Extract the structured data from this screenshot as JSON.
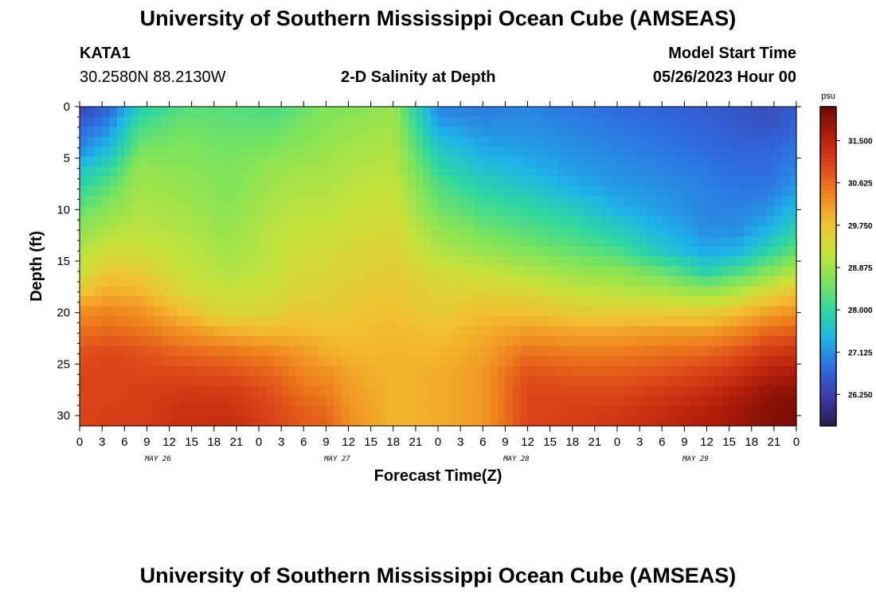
{
  "page": {
    "title": "University of Southern Mississippi Ocean Cube (AMSEAS)",
    "station_id": "KATA1",
    "station_coords": "30.2580N  88.2130W",
    "plot_title": "2-D Salinity at Depth",
    "model_start_label": "Model Start Time",
    "model_start_value": "05/26/2023 Hour 00",
    "footer_title": "University of Southern Mississippi Ocean Cube (AMSEAS)"
  },
  "chart_data": {
    "type": "heatmap",
    "title": "2-D Salinity at Depth",
    "xlabel": "Forecast Time(Z)",
    "ylabel": "Depth (ft)",
    "x_tick_labels": [
      "0",
      "3",
      "6",
      "9",
      "12",
      "15",
      "18",
      "21",
      "0",
      "3",
      "6",
      "9",
      "12",
      "15",
      "18",
      "21",
      "0",
      "3",
      "6",
      "9",
      "12",
      "15",
      "18",
      "21",
      "0",
      "3",
      "6",
      "9",
      "12",
      "15",
      "18",
      "21",
      "0"
    ],
    "x_range_hours": [
      0,
      96
    ],
    "date_labels": [
      {
        "label": "MAY 26",
        "hour": 9
      },
      {
        "label": "MAY 27",
        "hour": 33
      },
      {
        "label": "MAY 28",
        "hour": 57
      },
      {
        "label": "MAY 29",
        "hour": 81
      }
    ],
    "y_ticks": [
      0,
      5,
      10,
      15,
      20,
      25,
      30
    ],
    "ylim": [
      0,
      31
    ],
    "y_inverted": true,
    "colorbar": {
      "unit": "psu",
      "range": [
        25.6,
        32.2
      ],
      "ticks": [
        "31.500",
        "30.625",
        "29.750",
        "28.875",
        "28.000",
        "27.125",
        "26.250"
      ],
      "tick_values": [
        31.5,
        30.625,
        29.75,
        28.875,
        28.0,
        27.125,
        26.25
      ],
      "colors": [
        "#2a1a4a",
        "#3c3ca8",
        "#2f6be0",
        "#1eb4e8",
        "#2fd7a0",
        "#7ee45a",
        "#c8e23a",
        "#f2c030",
        "#f0841e",
        "#dc4418",
        "#b41e0a",
        "#6e0a04"
      ]
    },
    "profile_hours": [
      0,
      4,
      8,
      14,
      20,
      26,
      30,
      33,
      36,
      42,
      48,
      54,
      60,
      66,
      72,
      78,
      84,
      88,
      92,
      96
    ],
    "profile_depths_ft": [
      0,
      2,
      4,
      6,
      8,
      10,
      12,
      14,
      16,
      18,
      20,
      22,
      24,
      26,
      28,
      30,
      31
    ],
    "salinity_psu": [
      [
        26.3,
        26.7,
        27.0,
        27.6,
        28.0,
        28.4,
        28.7,
        29.0,
        29.2,
        29.7,
        30.3,
        30.6,
        30.9,
        31.0,
        31.0,
        31.0,
        31.0
      ],
      [
        26.7,
        27.1,
        27.5,
        28.0,
        28.4,
        28.7,
        29.0,
        29.3,
        29.7,
        30.0,
        30.4,
        30.7,
        31.0,
        31.0,
        31.0,
        31.1,
        31.1
      ],
      [
        27.8,
        28.2,
        28.5,
        28.8,
        28.9,
        29.0,
        29.1,
        29.3,
        29.6,
        29.9,
        30.3,
        30.6,
        30.9,
        31.0,
        31.1,
        31.1,
        31.1
      ],
      [
        28.3,
        28.5,
        28.6,
        28.7,
        28.8,
        28.9,
        29.0,
        29.1,
        29.2,
        29.4,
        29.8,
        30.3,
        30.7,
        31.0,
        31.2,
        31.3,
        31.3
      ],
      [
        28.3,
        28.4,
        28.5,
        28.6,
        28.6,
        28.7,
        28.8,
        28.9,
        29.0,
        29.2,
        29.4,
        30.0,
        30.6,
        30.9,
        31.2,
        31.3,
        31.4
      ],
      [
        28.2,
        28.4,
        28.6,
        28.8,
        28.9,
        29.0,
        29.1,
        29.1,
        29.2,
        29.3,
        29.5,
        29.9,
        30.4,
        30.7,
        30.9,
        31.0,
        31.0
      ],
      [
        28.4,
        28.6,
        28.7,
        28.9,
        29.0,
        29.1,
        29.2,
        29.3,
        29.4,
        29.5,
        29.7,
        29.9,
        30.2,
        30.4,
        30.6,
        30.8,
        30.8
      ],
      [
        28.6,
        28.7,
        28.8,
        28.9,
        29.0,
        29.1,
        29.2,
        29.3,
        29.4,
        29.5,
        29.6,
        29.8,
        30.0,
        30.3,
        30.5,
        30.7,
        30.7
      ],
      [
        28.6,
        28.8,
        28.9,
        29.0,
        29.1,
        29.2,
        29.3,
        29.4,
        29.5,
        29.6,
        29.7,
        29.8,
        29.9,
        30.1,
        30.2,
        30.3,
        30.3
      ],
      [
        28.8,
        28.9,
        29.0,
        29.1,
        29.2,
        29.3,
        29.4,
        29.5,
        29.6,
        29.7,
        29.8,
        29.9,
        29.9,
        29.9,
        29.9,
        29.9,
        29.9
      ],
      [
        27.0,
        27.3,
        27.7,
        28.0,
        28.3,
        28.5,
        28.8,
        29.0,
        29.3,
        29.5,
        29.6,
        29.8,
        29.9,
        30.0,
        30.0,
        30.0,
        30.0
      ],
      [
        26.9,
        27.1,
        27.3,
        27.6,
        27.9,
        28.2,
        28.5,
        28.8,
        29.2,
        29.5,
        29.8,
        30.0,
        30.1,
        30.2,
        30.2,
        30.2,
        30.2
      ],
      [
        27.0,
        27.1,
        27.2,
        27.4,
        27.7,
        28.0,
        28.3,
        28.6,
        29.0,
        29.4,
        29.8,
        30.2,
        30.6,
        30.9,
        31.0,
        31.0,
        31.0
      ],
      [
        26.9,
        27.0,
        27.1,
        27.2,
        27.4,
        27.8,
        28.1,
        28.4,
        28.8,
        29.2,
        29.6,
        30.1,
        30.5,
        30.8,
        31.0,
        31.1,
        31.1
      ],
      [
        26.8,
        26.9,
        27.0,
        27.1,
        27.2,
        27.4,
        27.8,
        28.2,
        28.7,
        29.1,
        29.6,
        30.1,
        30.5,
        30.8,
        31.0,
        31.2,
        31.2
      ],
      [
        26.7,
        26.8,
        26.9,
        27.0,
        27.1,
        27.2,
        27.4,
        27.7,
        28.4,
        29.0,
        29.6,
        30.2,
        30.6,
        30.9,
        31.2,
        31.4,
        31.4
      ],
      [
        26.6,
        26.7,
        26.8,
        26.9,
        27.0,
        27.0,
        27.1,
        27.3,
        27.9,
        28.8,
        29.6,
        30.2,
        30.7,
        31.1,
        31.4,
        31.6,
        31.6
      ],
      [
        26.5,
        26.6,
        26.7,
        26.8,
        26.9,
        27.0,
        27.1,
        27.4,
        28.2,
        29.0,
        29.8,
        30.4,
        30.9,
        31.3,
        31.6,
        31.8,
        31.8
      ],
      [
        26.4,
        26.5,
        26.7,
        26.8,
        26.9,
        27.1,
        27.4,
        27.9,
        28.6,
        29.4,
        30.1,
        30.7,
        31.2,
        31.6,
        31.9,
        32.0,
        32.0
      ],
      [
        26.6,
        26.7,
        26.9,
        27.0,
        27.2,
        27.5,
        27.9,
        28.4,
        29.0,
        29.7,
        30.3,
        30.8,
        31.3,
        31.7,
        32.0,
        32.1,
        32.1
      ]
    ]
  }
}
